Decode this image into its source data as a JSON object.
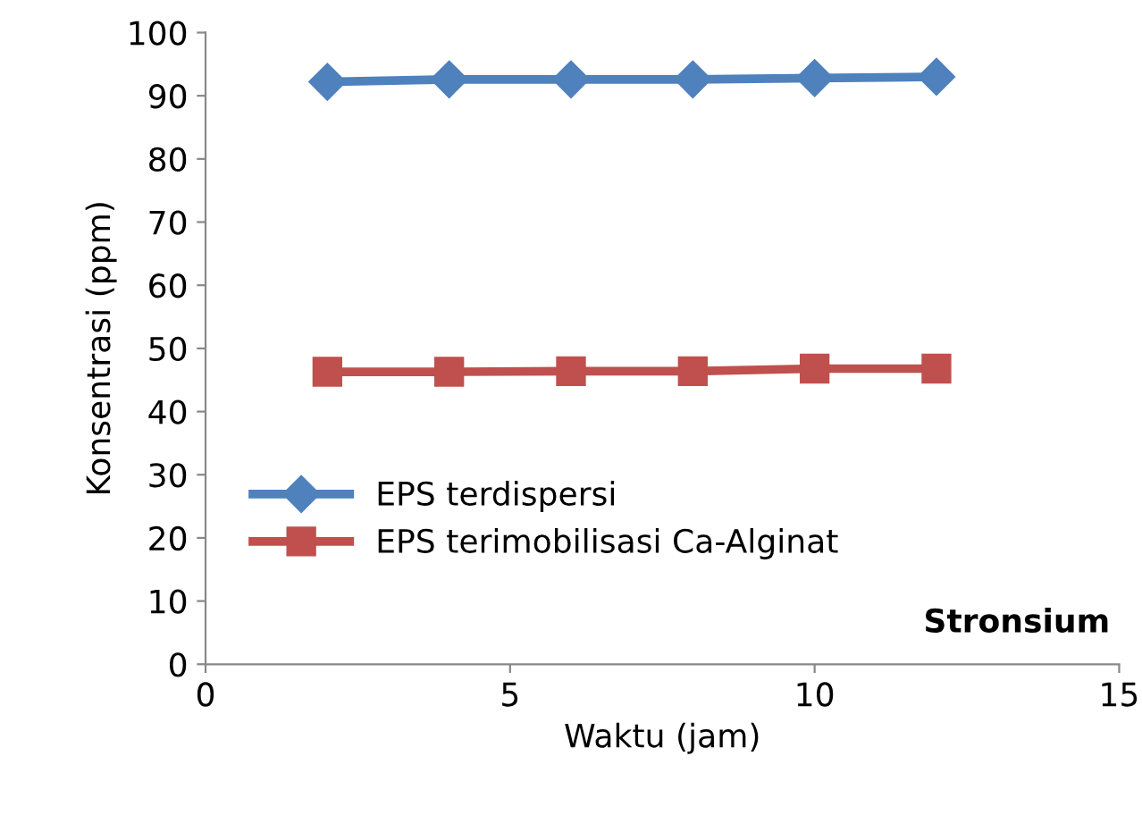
{
  "chart_data": {
    "type": "line",
    "xlabel": "Waktu (jam)",
    "ylabel": "Konsentrasi (ppm)",
    "annotations": [
      "Stronsium"
    ],
    "x": [
      2,
      4,
      6,
      8,
      10,
      12
    ],
    "series": [
      {
        "name": "EPS terdispersi",
        "color": "#4f81bd",
        "marker": "diamond",
        "values": [
          92.2,
          92.6,
          92.6,
          92.6,
          92.8,
          93.0
        ]
      },
      {
        "name": "EPS terimobilisasi Ca-Alginat",
        "color": "#c0504d",
        "marker": "square",
        "values": [
          46.3,
          46.3,
          46.4,
          46.4,
          46.8,
          46.8
        ]
      }
    ],
    "xlim": [
      0,
      15
    ],
    "xticks": [
      0,
      5,
      10,
      15
    ],
    "ylim": [
      0,
      100
    ],
    "yticks": [
      0,
      10,
      20,
      30,
      40,
      50,
      60,
      70,
      80,
      90,
      100
    ],
    "grid": false,
    "legend": "left",
    "line_style": "solid"
  }
}
